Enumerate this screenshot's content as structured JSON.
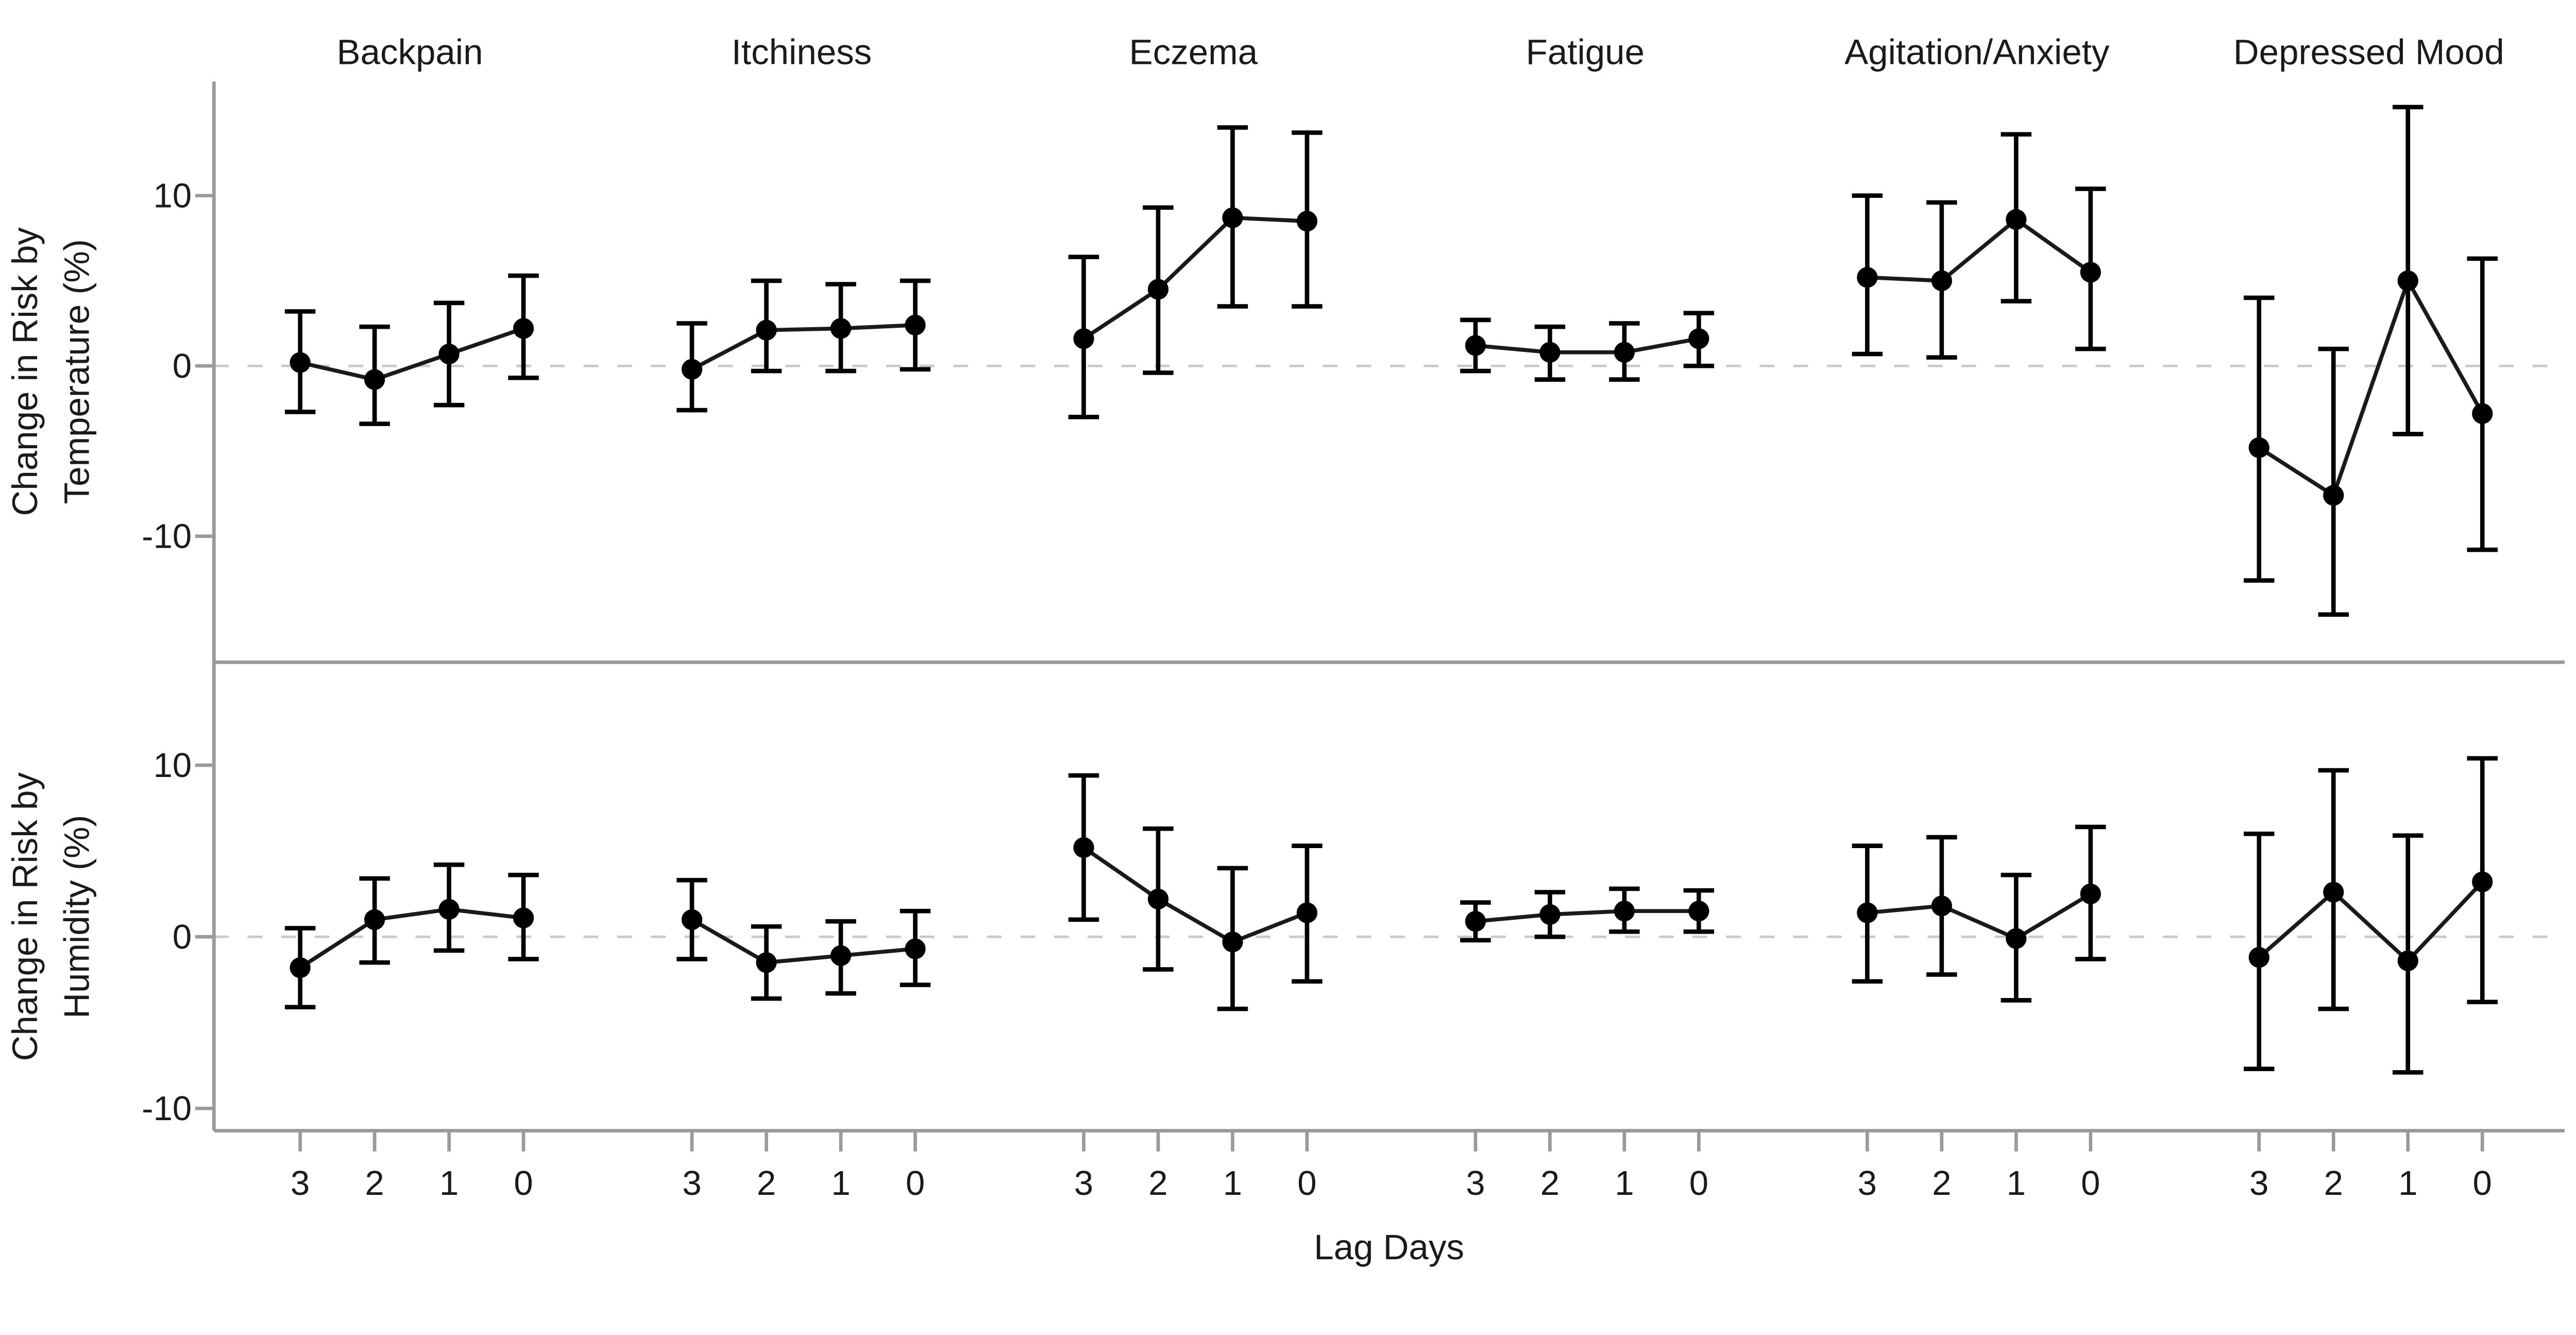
{
  "figure": {
    "xlabel": "Lag Days",
    "x_tick_labels": [
      "3",
      "2",
      "1",
      "0"
    ],
    "y_ticks": [
      10,
      0,
      -10
    ],
    "y_tick_labels": [
      "10",
      "0",
      "-10"
    ],
    "columns": [
      "Backpain",
      "Itchiness",
      "Eczema",
      "Fatigue",
      "Agitation/Anxiety",
      "Depressed Mood"
    ],
    "rows": [
      {
        "name": "Temperature",
        "ylabel_line1": "Change in Risk by",
        "ylabel_line2": "Temperature (%)"
      },
      {
        "name": "Humidity",
        "ylabel_line1": "Change in Risk by",
        "ylabel_line2": "Humidity (%)"
      }
    ]
  },
  "colors": {
    "data": "#000000",
    "series_line": "#1a1a1a",
    "axis": "#9a9a9a",
    "gridline": "#c9c9c9",
    "text": "#1a1a1a",
    "background": "#ffffff"
  },
  "chart_data": {
    "type": "line",
    "subtype": "errorbar-small-multiples",
    "x": [
      3,
      2,
      1,
      0
    ],
    "xlabel": "Lag Days",
    "grid": "zero-line-dashed-only",
    "legend": "none",
    "rows": [
      {
        "name": "Temperature",
        "ylabel": "Change in Risk by Temperature (%)",
        "ylim": [
          -17.4,
          16.7
        ],
        "yticks": [
          10,
          0,
          -10
        ],
        "panels": [
          {
            "column": "Backpain",
            "values": [
              0.2,
              -0.8,
              0.7,
              2.2
            ],
            "ci_low": [
              -2.7,
              -3.4,
              -2.3,
              -0.7
            ],
            "ci_high": [
              3.2,
              2.3,
              3.7,
              5.3
            ]
          },
          {
            "column": "Itchiness",
            "values": [
              -0.2,
              2.1,
              2.2,
              2.4
            ],
            "ci_low": [
              -2.6,
              -0.3,
              -0.3,
              -0.2
            ],
            "ci_high": [
              2.5,
              5.0,
              4.8,
              5.0
            ]
          },
          {
            "column": "Eczema",
            "values": [
              1.6,
              4.5,
              8.7,
              8.5
            ],
            "ci_low": [
              -3.0,
              -0.4,
              3.5,
              3.5
            ],
            "ci_high": [
              6.4,
              9.3,
              14.0,
              13.7
            ]
          },
          {
            "column": "Fatigue",
            "values": [
              1.2,
              0.8,
              0.8,
              1.6
            ],
            "ci_low": [
              -0.3,
              -0.8,
              -0.8,
              0.0
            ],
            "ci_high": [
              2.7,
              2.3,
              2.5,
              3.1
            ]
          },
          {
            "column": "Agitation/Anxiety",
            "values": [
              5.2,
              5.0,
              8.6,
              5.5
            ],
            "ci_low": [
              0.7,
              0.5,
              3.8,
              1.0
            ],
            "ci_high": [
              10.0,
              9.6,
              13.6,
              10.4
            ]
          },
          {
            "column": "Depressed Mood",
            "values": [
              -4.8,
              -7.6,
              5.0,
              -2.8
            ],
            "ci_low": [
              -12.6,
              -14.6,
              -4.0,
              -10.8
            ],
            "ci_high": [
              4.0,
              1.0,
              15.2,
              6.3
            ]
          }
        ]
      },
      {
        "name": "Humidity",
        "ylabel": "Change in Risk by Humidity (%)",
        "ylim": [
          -11.3,
          16.0
        ],
        "yticks": [
          10,
          0,
          -10
        ],
        "panels": [
          {
            "column": "Backpain",
            "values": [
              -1.8,
              1.0,
              1.6,
              1.1
            ],
            "ci_low": [
              -4.1,
              -1.5,
              -0.8,
              -1.3
            ],
            "ci_high": [
              0.5,
              3.4,
              4.2,
              3.6
            ]
          },
          {
            "column": "Itchiness",
            "values": [
              1.0,
              -1.5,
              -1.1,
              -0.7
            ],
            "ci_low": [
              -1.3,
              -3.6,
              -3.3,
              -2.8
            ],
            "ci_high": [
              3.3,
              0.6,
              0.9,
              1.5
            ]
          },
          {
            "column": "Eczema",
            "values": [
              5.2,
              2.2,
              -0.3,
              1.4
            ],
            "ci_low": [
              1.0,
              -1.9,
              -4.2,
              -2.6
            ],
            "ci_high": [
              9.4,
              6.3,
              4.0,
              5.3
            ]
          },
          {
            "column": "Fatigue",
            "values": [
              0.9,
              1.3,
              1.5,
              1.5
            ],
            "ci_low": [
              -0.2,
              0.0,
              0.3,
              0.3
            ],
            "ci_high": [
              2.0,
              2.6,
              2.8,
              2.7
            ]
          },
          {
            "column": "Agitation/Anxiety",
            "values": [
              1.4,
              1.8,
              -0.1,
              2.5
            ],
            "ci_low": [
              -2.6,
              -2.2,
              -3.7,
              -1.3
            ],
            "ci_high": [
              5.3,
              5.8,
              3.6,
              6.4
            ]
          },
          {
            "column": "Depressed Mood",
            "values": [
              -1.2,
              2.6,
              -1.4,
              3.2
            ],
            "ci_low": [
              -7.7,
              -4.2,
              -7.9,
              -3.8
            ],
            "ci_high": [
              6.0,
              9.7,
              5.9,
              10.4
            ]
          }
        ]
      }
    ]
  }
}
